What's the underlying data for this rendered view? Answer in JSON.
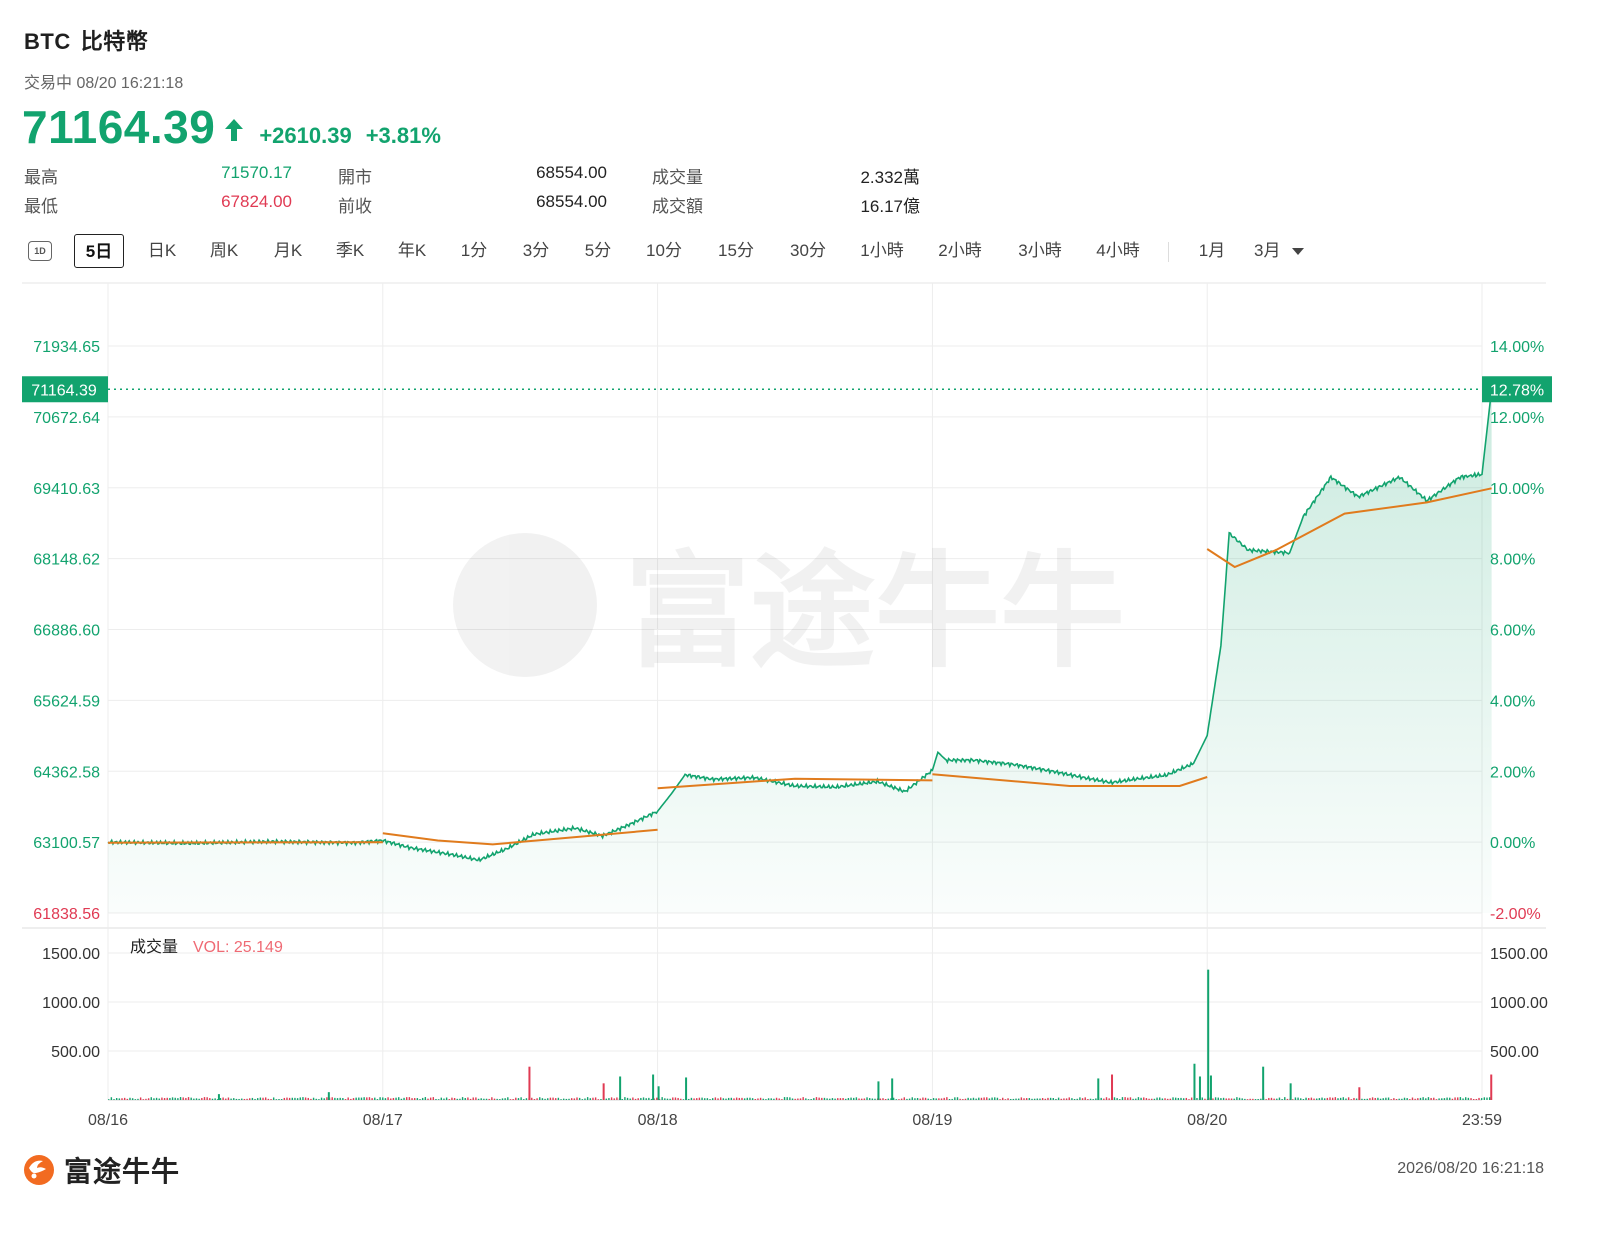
{
  "header": {
    "symbol": "BTC",
    "name": "比特幣",
    "status": "交易中 08/20 16:21:18",
    "price": "71164.39",
    "change": "+2610.39",
    "change_pct": "+3.81%"
  },
  "quote": {
    "high_label": "最高",
    "high": "71570.17",
    "low_label": "最低",
    "low": "67824.00",
    "open_label": "開市",
    "open": "68554.00",
    "prev_close_label": "前收",
    "prev_close": "68554.00",
    "volume_label": "成交量",
    "volume": "2.332萬",
    "turnover_label": "成交額",
    "turnover": "16.17億"
  },
  "tabs": {
    "icon_label": "1D",
    "items": [
      "5日",
      "日K",
      "周K",
      "月K",
      "季K",
      "年K",
      "1分",
      "3分",
      "5分",
      "10分",
      "15分",
      "30分",
      "1小時",
      "2小時",
      "3小時",
      "4小時"
    ],
    "extra": [
      "1月",
      "3月"
    ],
    "active": "5日"
  },
  "footer": {
    "brand": "富途牛牛",
    "timestamp": "2026/08/20 16:21:18"
  },
  "colors": {
    "up": "#12a36e",
    "down": "#e03a53",
    "avg_line": "#e07b1d",
    "grid": "#ededed"
  },
  "chart_data": {
    "type": "line",
    "ylim": [
      61838.56,
      71934.65
    ],
    "y_ticks": [
      "71934.65",
      "70672.64",
      "69410.63",
      "68148.62",
      "66886.60",
      "65624.59",
      "64362.58",
      "63100.57",
      "61838.56"
    ],
    "y_pct_ticks": [
      "14.00%",
      "12.00%",
      "10.00%",
      "8.00%",
      "6.00%",
      "4.00%",
      "2.00%",
      "0.00%",
      "-2.00%"
    ],
    "x_ticks": [
      "08/16",
      "08/17",
      "08/18",
      "08/19",
      "08/20",
      "23:59"
    ],
    "current_price_label": "71164.39",
    "current_pct_label": "12.78%",
    "price_series": {
      "name": "price",
      "points": [
        [
          0,
          63100
        ],
        [
          0.3,
          63080
        ],
        [
          0.6,
          63110
        ],
        [
          0.9,
          63090
        ],
        [
          1.0,
          63130
        ],
        [
          1.1,
          63000
        ],
        [
          1.25,
          62880
        ],
        [
          1.35,
          62780
        ],
        [
          1.45,
          62980
        ],
        [
          1.55,
          63240
        ],
        [
          1.7,
          63350
        ],
        [
          1.8,
          63210
        ],
        [
          1.9,
          63420
        ],
        [
          2.0,
          63650
        ],
        [
          2.05,
          63960
        ],
        [
          2.1,
          64300
        ],
        [
          2.2,
          64220
        ],
        [
          2.35,
          64250
        ],
        [
          2.5,
          64100
        ],
        [
          2.65,
          64080
        ],
        [
          2.8,
          64180
        ],
        [
          2.9,
          64000
        ],
        [
          3.0,
          64380
        ],
        [
          3.02,
          64700
        ],
        [
          3.05,
          64560
        ],
        [
          3.15,
          64560
        ],
        [
          3.3,
          64480
        ],
        [
          3.45,
          64350
        ],
        [
          3.55,
          64250
        ],
        [
          3.65,
          64160
        ],
        [
          3.75,
          64230
        ],
        [
          3.85,
          64290
        ],
        [
          3.95,
          64500
        ],
        [
          4.0,
          65000
        ],
        [
          4.05,
          66600
        ],
        [
          4.08,
          68600
        ],
        [
          4.15,
          68300
        ],
        [
          4.3,
          68250
        ],
        [
          4.35,
          68900
        ],
        [
          4.45,
          69600
        ],
        [
          4.55,
          69250
        ],
        [
          4.7,
          69600
        ],
        [
          4.8,
          69180
        ],
        [
          4.92,
          69600
        ],
        [
          5.0,
          69650
        ],
        [
          5.035,
          71164.39
        ]
      ]
    },
    "avg_series": {
      "name": "avg",
      "segments": [
        [
          [
            0,
            63090
          ],
          [
            1.0,
            63100
          ]
        ],
        [
          [
            1.0,
            63260
          ],
          [
            1.2,
            63130
          ],
          [
            1.4,
            63060
          ],
          [
            1.7,
            63190
          ],
          [
            2.0,
            63320
          ]
        ],
        [
          [
            2.0,
            64060
          ],
          [
            2.5,
            64230
          ],
          [
            3.0,
            64200
          ]
        ],
        [
          [
            3.0,
            64310
          ],
          [
            3.5,
            64100
          ],
          [
            3.9,
            64100
          ],
          [
            4.0,
            64260
          ]
        ],
        [
          [
            4.0,
            68320
          ],
          [
            4.1,
            68000
          ],
          [
            4.25,
            68300
          ],
          [
            4.5,
            68950
          ],
          [
            4.8,
            69150
          ],
          [
            5.035,
            69400
          ]
        ]
      ]
    },
    "volume": {
      "label": "成交量",
      "vol_text": "VOL: 25.149",
      "ylim": [
        0,
        1500
      ],
      "y_ticks": [
        "1500.00",
        "1000.00",
        "500.00"
      ],
      "bars": [
        [
          4.0,
          1330
        ],
        [
          3.95,
          370
        ],
        [
          4.01,
          250
        ],
        [
          1.53,
          340
        ],
        [
          1.86,
          240
        ],
        [
          1.98,
          260
        ],
        [
          2.1,
          230
        ],
        [
          1.8,
          170
        ],
        [
          2.85,
          220
        ],
        [
          2.8,
          190
        ],
        [
          3.6,
          220
        ],
        [
          3.65,
          260
        ],
        [
          3.97,
          240
        ],
        [
          4.2,
          340
        ],
        [
          4.3,
          170
        ],
        [
          5.03,
          260
        ],
        [
          0.8,
          80
        ],
        [
          2.0,
          140
        ],
        [
          0.4,
          60
        ],
        [
          4.55,
          130
        ]
      ]
    }
  }
}
